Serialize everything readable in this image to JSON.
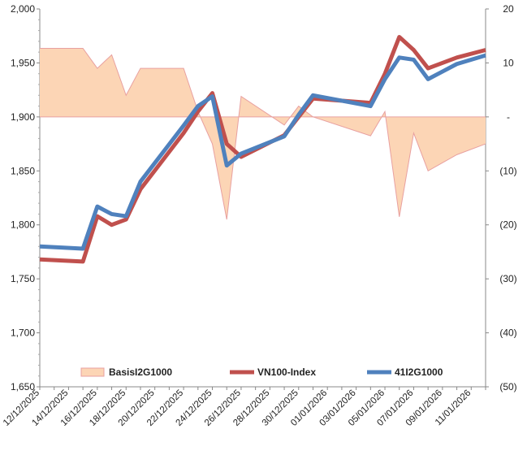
{
  "chart_data": {
    "type": "line",
    "title": "",
    "x_labels": [
      "12/12/2025",
      "14/12/2025",
      "16/12/2025",
      "18/12/2025",
      "20/12/2025",
      "22/12/2025",
      "24/12/2025",
      "26/12/2025",
      "28/12/2025",
      "30/12/2025",
      "01/01/2026",
      "03/01/2026",
      "05/01/2026",
      "07/01/2026",
      "09/01/2026",
      "11/01/2026"
    ],
    "x_range": [
      0,
      31
    ],
    "y_left": {
      "min": 1650,
      "max": 2000,
      "ticks": [
        1650,
        1700,
        1750,
        1800,
        1850,
        1900,
        1950,
        2000
      ],
      "tick_labels": [
        "1,650",
        "1,700",
        "1,750",
        "1,800",
        "1,850",
        "1,900",
        "1,950",
        "2,000"
      ]
    },
    "y_right": {
      "min": -50,
      "max": 20,
      "ticks": [
        20,
        10,
        0,
        -10,
        -20,
        -30,
        -40,
        -50
      ],
      "tick_labels": [
        "20",
        "10",
        "-",
        "(10)",
        "(20)",
        "(30)",
        "(40)",
        "(50)"
      ]
    },
    "series": [
      {
        "name": "BasisI2G1000",
        "kind": "area",
        "axis": "right",
        "color": "#fcd5b5",
        "edge_color": "#e8a0a0",
        "x": [
          0,
          3,
          4,
          5,
          6,
          7,
          10,
          11,
          12,
          13,
          14,
          17,
          18,
          19,
          23,
          24,
          25,
          26,
          27,
          28,
          29,
          31
        ],
        "y": [
          12.7,
          12.7,
          9.0,
          11.5,
          4.0,
          9.0,
          9.0,
          1.0,
          -5.0,
          -19.0,
          3.8,
          -1.5,
          2.0,
          0.0,
          -3.5,
          1.0,
          -18.5,
          -3.0,
          -10.0,
          -8.5,
          -7.0,
          -5.0
        ]
      },
      {
        "name": "VN100-Index",
        "kind": "line",
        "axis": "left",
        "color": "#c0504d",
        "x": [
          0,
          3,
          4,
          5,
          6,
          7,
          10,
          11,
          12,
          13,
          14,
          17,
          18,
          19,
          23,
          24,
          25,
          26,
          27,
          28,
          29,
          31
        ],
        "y": [
          1768,
          1766,
          1808,
          1800,
          1805,
          1833,
          1885,
          1905,
          1922,
          1875,
          1863,
          1883,
          1900,
          1917,
          1913,
          1940,
          1974,
          1962,
          1945,
          1950,
          1955,
          1962
        ]
      },
      {
        "name": "41I2G1000",
        "kind": "line",
        "axis": "left",
        "color": "#4f81bd",
        "x": [
          0,
          3,
          4,
          5,
          6,
          7,
          10,
          11,
          12,
          13,
          14,
          17,
          18,
          19,
          23,
          24,
          25,
          26,
          27,
          28,
          29,
          31
        ],
        "y": [
          1780,
          1778,
          1817,
          1810,
          1808,
          1840,
          1892,
          1910,
          1919,
          1855,
          1866,
          1882,
          1902,
          1920,
          1910,
          1935,
          1955,
          1953,
          1935,
          1942,
          1949,
          1957
        ]
      }
    ],
    "legend": [
      "BasisI2G1000",
      "VN100-Index",
      "41I2G1000"
    ],
    "legend_position": "bottom-inside"
  }
}
